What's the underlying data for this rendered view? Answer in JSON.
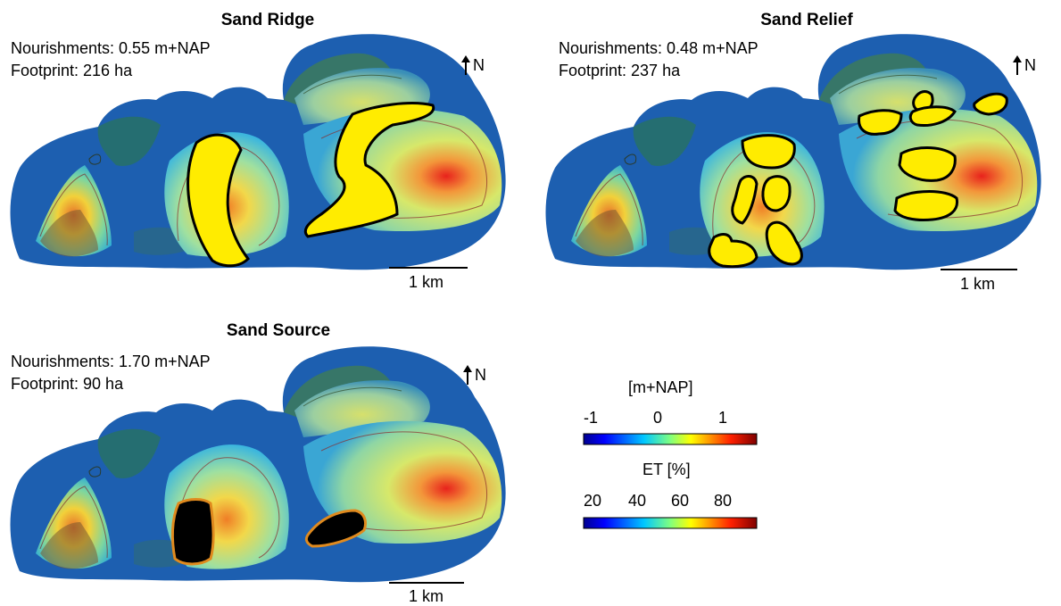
{
  "panels": [
    {
      "title": "Sand Ridge",
      "nourishments": "Nourishments: 0.55 m+NAP",
      "footprint": "Footprint: 216 ha",
      "north": "N",
      "scale": "1 km"
    },
    {
      "title": "Sand Relief",
      "nourishments": "Nourishments: 0.48 m+NAP",
      "footprint": "Footprint: 237 ha",
      "north": "N",
      "scale": "1 km"
    },
    {
      "title": "Sand Source",
      "nourishments": "Nourishments: 1.70 m+NAP",
      "footprint": "Footprint: 90 ha",
      "north": "N",
      "scale": "1 km"
    }
  ],
  "colorbars": {
    "elevation": {
      "title": "[m+NAP]",
      "ticks": [
        "-1",
        "0",
        "1"
      ],
      "range": [
        -1,
        1.5
      ]
    },
    "et": {
      "title": "ET [%]",
      "ticks": [
        "20",
        "40",
        "60",
        "80"
      ],
      "range": [
        10,
        95
      ]
    }
  },
  "colors": {
    "nourishment_fill": "#ffec00",
    "source_fill": "#000000",
    "source_outline": "#e08a1e"
  }
}
